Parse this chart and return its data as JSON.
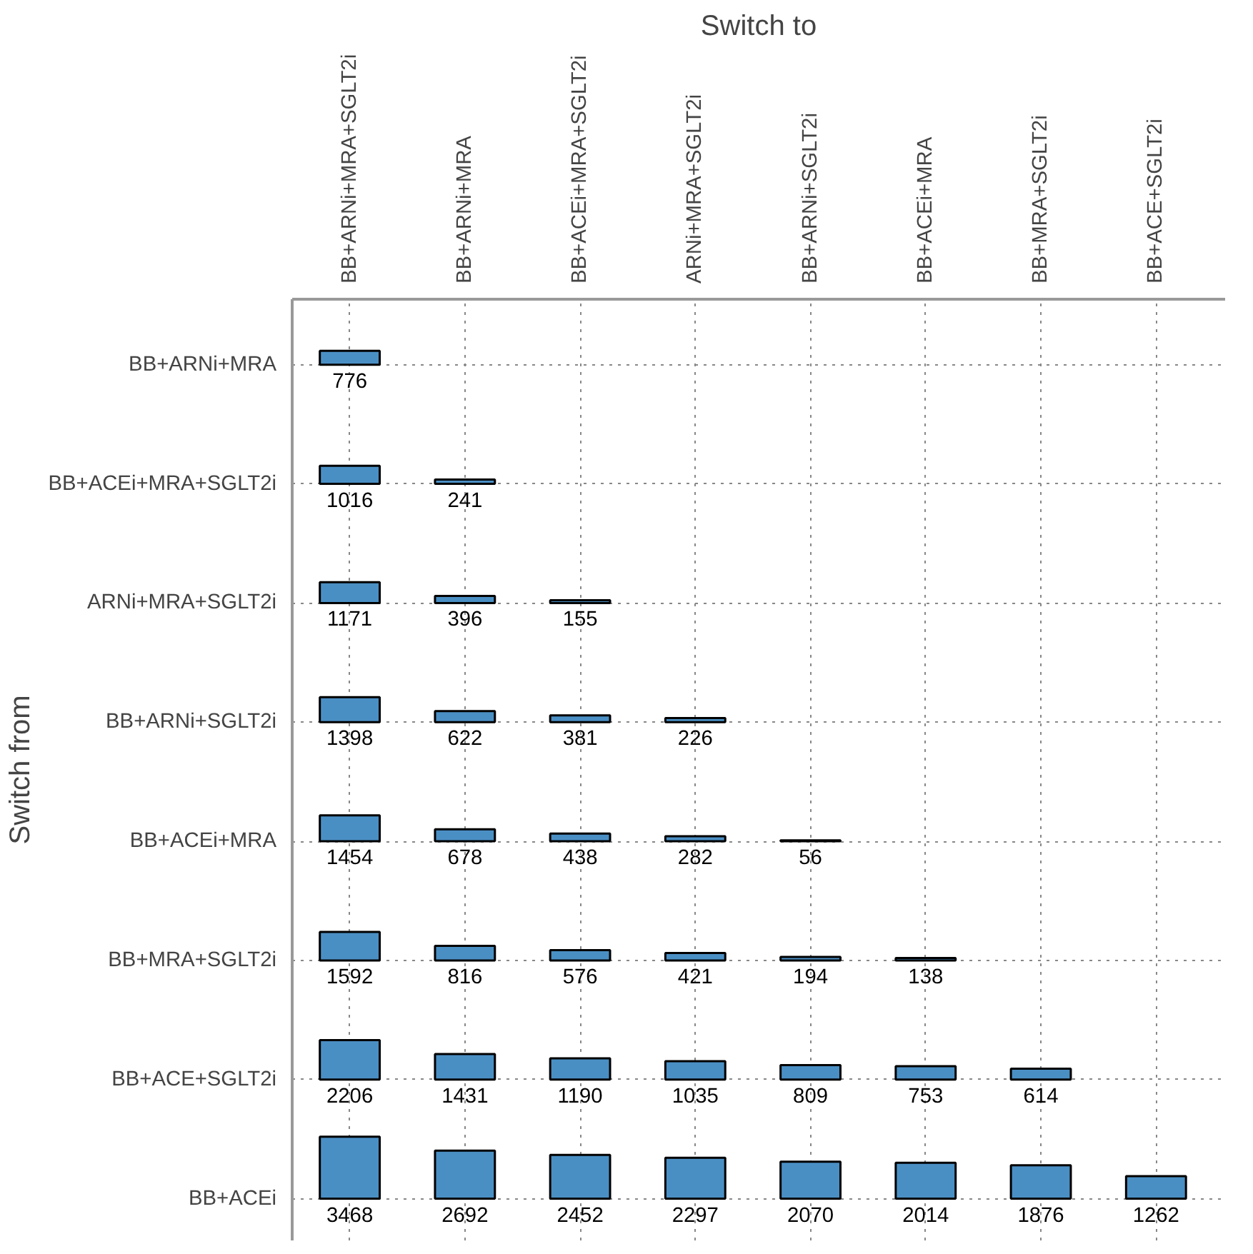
{
  "chart_data": {
    "type": "heatmap",
    "title": "Switch to",
    "ylabel": "Switch from",
    "categories": [
      "BB+ARNi+MRA+SGLT2i",
      "BB+ARNi+MRA",
      "BB+ACEi+MRA+SGLT2i",
      "ARNi+MRA+SGLT2i",
      "BB+ARNi+SGLT2i",
      "BB+ACEi+MRA",
      "BB+MRA+SGLT2i",
      "BB+ACE+SGLT2i"
    ],
    "y_categories": [
      "BB+ARNi+MRA",
      "BB+ACEi+MRA+SGLT2i",
      "ARNi+MRA+SGLT2i",
      "BB+ARNi+SGLT2i",
      "BB+ACEi+MRA",
      "BB+MRA+SGLT2i",
      "BB+ACE+SGLT2i",
      "BB+ACEi"
    ],
    "cells": [
      [
        776,
        null,
        null,
        null,
        null,
        null,
        null,
        null
      ],
      [
        1016,
        241,
        null,
        null,
        null,
        null,
        null,
        null
      ],
      [
        1171,
        396,
        155,
        null,
        null,
        null,
        null,
        null
      ],
      [
        1398,
        622,
        381,
        226,
        null,
        null,
        null,
        null
      ],
      [
        1454,
        678,
        438,
        282,
        56,
        null,
        null,
        null
      ],
      [
        1592,
        816,
        576,
        421,
        194,
        138,
        null,
        null
      ],
      [
        2206,
        1431,
        1190,
        1035,
        809,
        753,
        614,
        null
      ],
      [
        3468,
        2692,
        2452,
        2297,
        2070,
        2014,
        1876,
        1262
      ]
    ],
    "color": "#4a8fc4",
    "data_labels": true,
    "grid": true
  }
}
